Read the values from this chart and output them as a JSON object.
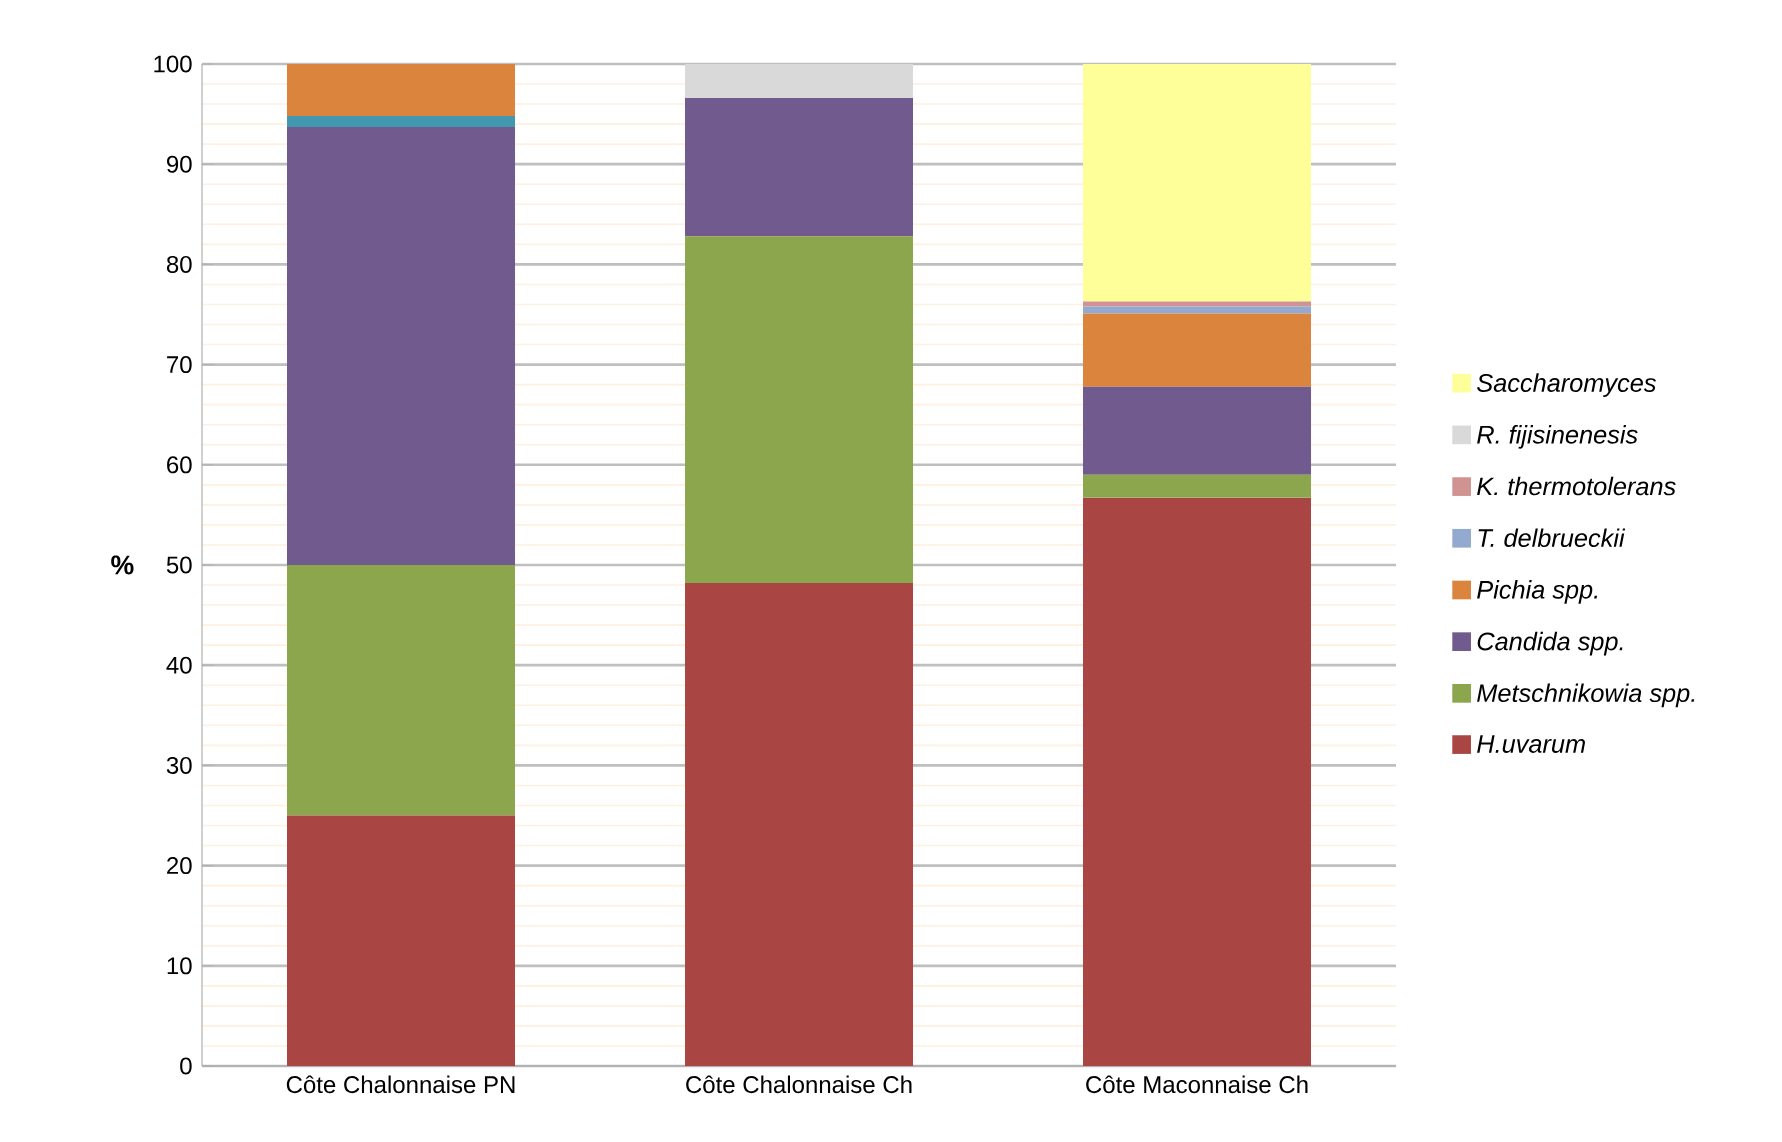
{
  "chart_data": {
    "type": "bar",
    "stacked": true,
    "ylabel": "%",
    "categories": [
      "Côte Chalonnaise PN",
      "Côte Chalonnaise Ch",
      "Côte Maconnaise Ch"
    ],
    "series": [
      {
        "name": "H.uvarum",
        "color": "#a94643",
        "values": [
          25,
          48.2,
          56.7
        ]
      },
      {
        "name": "Metschnikowia spp.",
        "color": "#8ba64d",
        "values": [
          25,
          34.6,
          2.3
        ]
      },
      {
        "name": "Candida spp.",
        "color": "#715a8e",
        "values": [
          43.7,
          13.8,
          8.8
        ]
      },
      {
        "color": "#4198af",
        "values": [
          1.1,
          0,
          0
        ]
      },
      {
        "name": "Pichia spp.",
        "color": "#db843d",
        "values": [
          5.2,
          0,
          7.3
        ]
      },
      {
        "name": "T. delbrueckii",
        "color": "#93a9cf",
        "values": [
          0,
          0,
          0.7
        ]
      },
      {
        "name": "K. thermotolerans",
        "color": "#d09392",
        "values": [
          0,
          0,
          0.5
        ]
      },
      {
        "name": "R. fijisinenesis",
        "color": "#d9d9d9",
        "values": [
          0,
          3.4,
          0
        ]
      },
      {
        "name": "Saccharomyces",
        "color": "#ffff99",
        "values": [
          0,
          0,
          23.7
        ]
      }
    ],
    "ylim": [
      0,
      100
    ],
    "yticks": [
      0,
      10,
      20,
      30,
      40,
      50,
      60,
      70,
      80,
      90,
      100
    ],
    "grid": "y",
    "legend": "right"
  }
}
